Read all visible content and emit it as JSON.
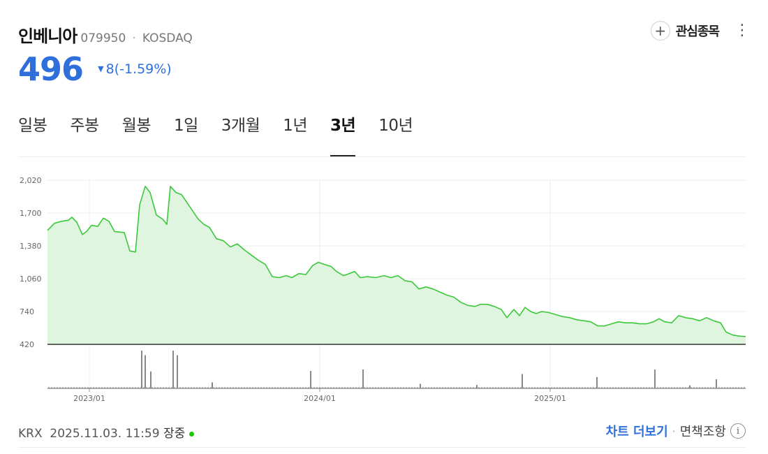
{
  "header": {
    "stock_name": "인베니아",
    "stock_code": "079950",
    "separator": "·",
    "market": "KOSDAQ",
    "watch_label": "관심종목",
    "plus_glyph": "+",
    "more_glyph": "⋮"
  },
  "price": {
    "current": "496",
    "change_arrow": "▼",
    "change": "8(-1.59%)",
    "color": "#2f6fdc"
  },
  "tabs": [
    {
      "label": "일봉",
      "active": false
    },
    {
      "label": "주봉",
      "active": false
    },
    {
      "label": "월봉",
      "active": false
    },
    {
      "label": "1일",
      "active": false
    },
    {
      "label": "3개월",
      "active": false
    },
    {
      "label": "1년",
      "active": false
    },
    {
      "label": "3년",
      "active": true
    },
    {
      "label": "10년",
      "active": false
    }
  ],
  "chart_data": {
    "type": "area",
    "title": "",
    "xlabel": "",
    "ylabel": "",
    "ylim": [
      420,
      2020
    ],
    "y_ticks": [
      "2,020",
      "1,700",
      "1,380",
      "1,060",
      "740",
      "420"
    ],
    "x_ticks": [
      {
        "label": "2023/01",
        "t": 0.06
      },
      {
        "label": "2024/01",
        "t": 0.39
      },
      {
        "label": "2025/01",
        "t": 0.72
      }
    ],
    "line_color": "#3cc83c",
    "fill_color": "#dff5df",
    "grid": true,
    "series": [
      {
        "points": [
          [
            0.0,
            1530
          ],
          [
            0.01,
            1600
          ],
          [
            0.02,
            1620
          ],
          [
            0.03,
            1630
          ],
          [
            0.035,
            1660
          ],
          [
            0.042,
            1610
          ],
          [
            0.05,
            1490
          ],
          [
            0.056,
            1520
          ],
          [
            0.063,
            1580
          ],
          [
            0.072,
            1570
          ],
          [
            0.08,
            1650
          ],
          [
            0.088,
            1620
          ],
          [
            0.096,
            1520
          ],
          [
            0.11,
            1510
          ],
          [
            0.118,
            1330
          ],
          [
            0.126,
            1320
          ],
          [
            0.132,
            1780
          ],
          [
            0.14,
            1960
          ],
          [
            0.147,
            1900
          ],
          [
            0.156,
            1680
          ],
          [
            0.165,
            1640
          ],
          [
            0.171,
            1590
          ],
          [
            0.176,
            1960
          ],
          [
            0.184,
            1900
          ],
          [
            0.192,
            1880
          ],
          [
            0.2,
            1800
          ],
          [
            0.208,
            1720
          ],
          [
            0.216,
            1640
          ],
          [
            0.224,
            1590
          ],
          [
            0.232,
            1560
          ],
          [
            0.242,
            1450
          ],
          [
            0.252,
            1430
          ],
          [
            0.262,
            1370
          ],
          [
            0.272,
            1400
          ],
          [
            0.282,
            1340
          ],
          [
            0.292,
            1290
          ],
          [
            0.302,
            1240
          ],
          [
            0.312,
            1200
          ],
          [
            0.322,
            1080
          ],
          [
            0.332,
            1070
          ],
          [
            0.342,
            1090
          ],
          [
            0.35,
            1070
          ],
          [
            0.36,
            1110
          ],
          [
            0.37,
            1100
          ],
          [
            0.38,
            1190
          ],
          [
            0.388,
            1220
          ],
          [
            0.396,
            1200
          ],
          [
            0.406,
            1180
          ],
          [
            0.414,
            1130
          ],
          [
            0.424,
            1090
          ],
          [
            0.432,
            1110
          ],
          [
            0.44,
            1130
          ],
          [
            0.448,
            1070
          ],
          [
            0.458,
            1080
          ],
          [
            0.47,
            1070
          ],
          [
            0.482,
            1090
          ],
          [
            0.492,
            1070
          ],
          [
            0.502,
            1090
          ],
          [
            0.512,
            1040
          ],
          [
            0.522,
            1030
          ],
          [
            0.532,
            960
          ],
          [
            0.542,
            980
          ],
          [
            0.552,
            960
          ],
          [
            0.562,
            930
          ],
          [
            0.572,
            900
          ],
          [
            0.582,
            880
          ],
          [
            0.592,
            830
          ],
          [
            0.602,
            800
          ],
          [
            0.612,
            790
          ],
          [
            0.62,
            810
          ],
          [
            0.63,
            810
          ],
          [
            0.64,
            790
          ],
          [
            0.65,
            760
          ],
          [
            0.658,
            680
          ],
          [
            0.668,
            760
          ],
          [
            0.676,
            700
          ],
          [
            0.684,
            780
          ],
          [
            0.692,
            740
          ],
          [
            0.7,
            720
          ],
          [
            0.708,
            740
          ],
          [
            0.718,
            730
          ],
          [
            0.728,
            710
          ],
          [
            0.738,
            690
          ],
          [
            0.748,
            680
          ],
          [
            0.758,
            660
          ],
          [
            0.768,
            650
          ],
          [
            0.778,
            640
          ],
          [
            0.788,
            600
          ],
          [
            0.798,
            600
          ],
          [
            0.808,
            620
          ],
          [
            0.818,
            640
          ],
          [
            0.828,
            630
          ],
          [
            0.838,
            630
          ],
          [
            0.848,
            620
          ],
          [
            0.858,
            620
          ],
          [
            0.868,
            640
          ],
          [
            0.876,
            670
          ],
          [
            0.884,
            640
          ],
          [
            0.894,
            630
          ],
          [
            0.904,
            700
          ],
          [
            0.914,
            680
          ],
          [
            0.924,
            670
          ],
          [
            0.934,
            650
          ],
          [
            0.944,
            680
          ],
          [
            0.954,
            650
          ],
          [
            0.964,
            630
          ],
          [
            0.972,
            540
          ],
          [
            0.982,
            510
          ],
          [
            0.992,
            500
          ],
          [
            1.0,
            496
          ]
        ]
      }
    ],
    "volume": [
      [
        0.135,
        1.0
      ],
      [
        0.14,
        0.88
      ],
      [
        0.148,
        0.45
      ],
      [
        0.18,
        1.0
      ],
      [
        0.186,
        0.88
      ],
      [
        0.236,
        0.16
      ],
      [
        0.377,
        0.46
      ],
      [
        0.452,
        0.5
      ],
      [
        0.534,
        0.12
      ],
      [
        0.615,
        0.09
      ],
      [
        0.68,
        0.38
      ],
      [
        0.787,
        0.3
      ],
      [
        0.87,
        0.5
      ],
      [
        0.92,
        0.08
      ],
      [
        0.958,
        0.24
      ]
    ]
  },
  "footer": {
    "exchange": "KRX",
    "datetime": "2025.11.03. 11:59",
    "status": "장중",
    "more_chart": "차트 더보기",
    "separator": "·",
    "disclaimer": "면책조항",
    "info_glyph": "i"
  }
}
